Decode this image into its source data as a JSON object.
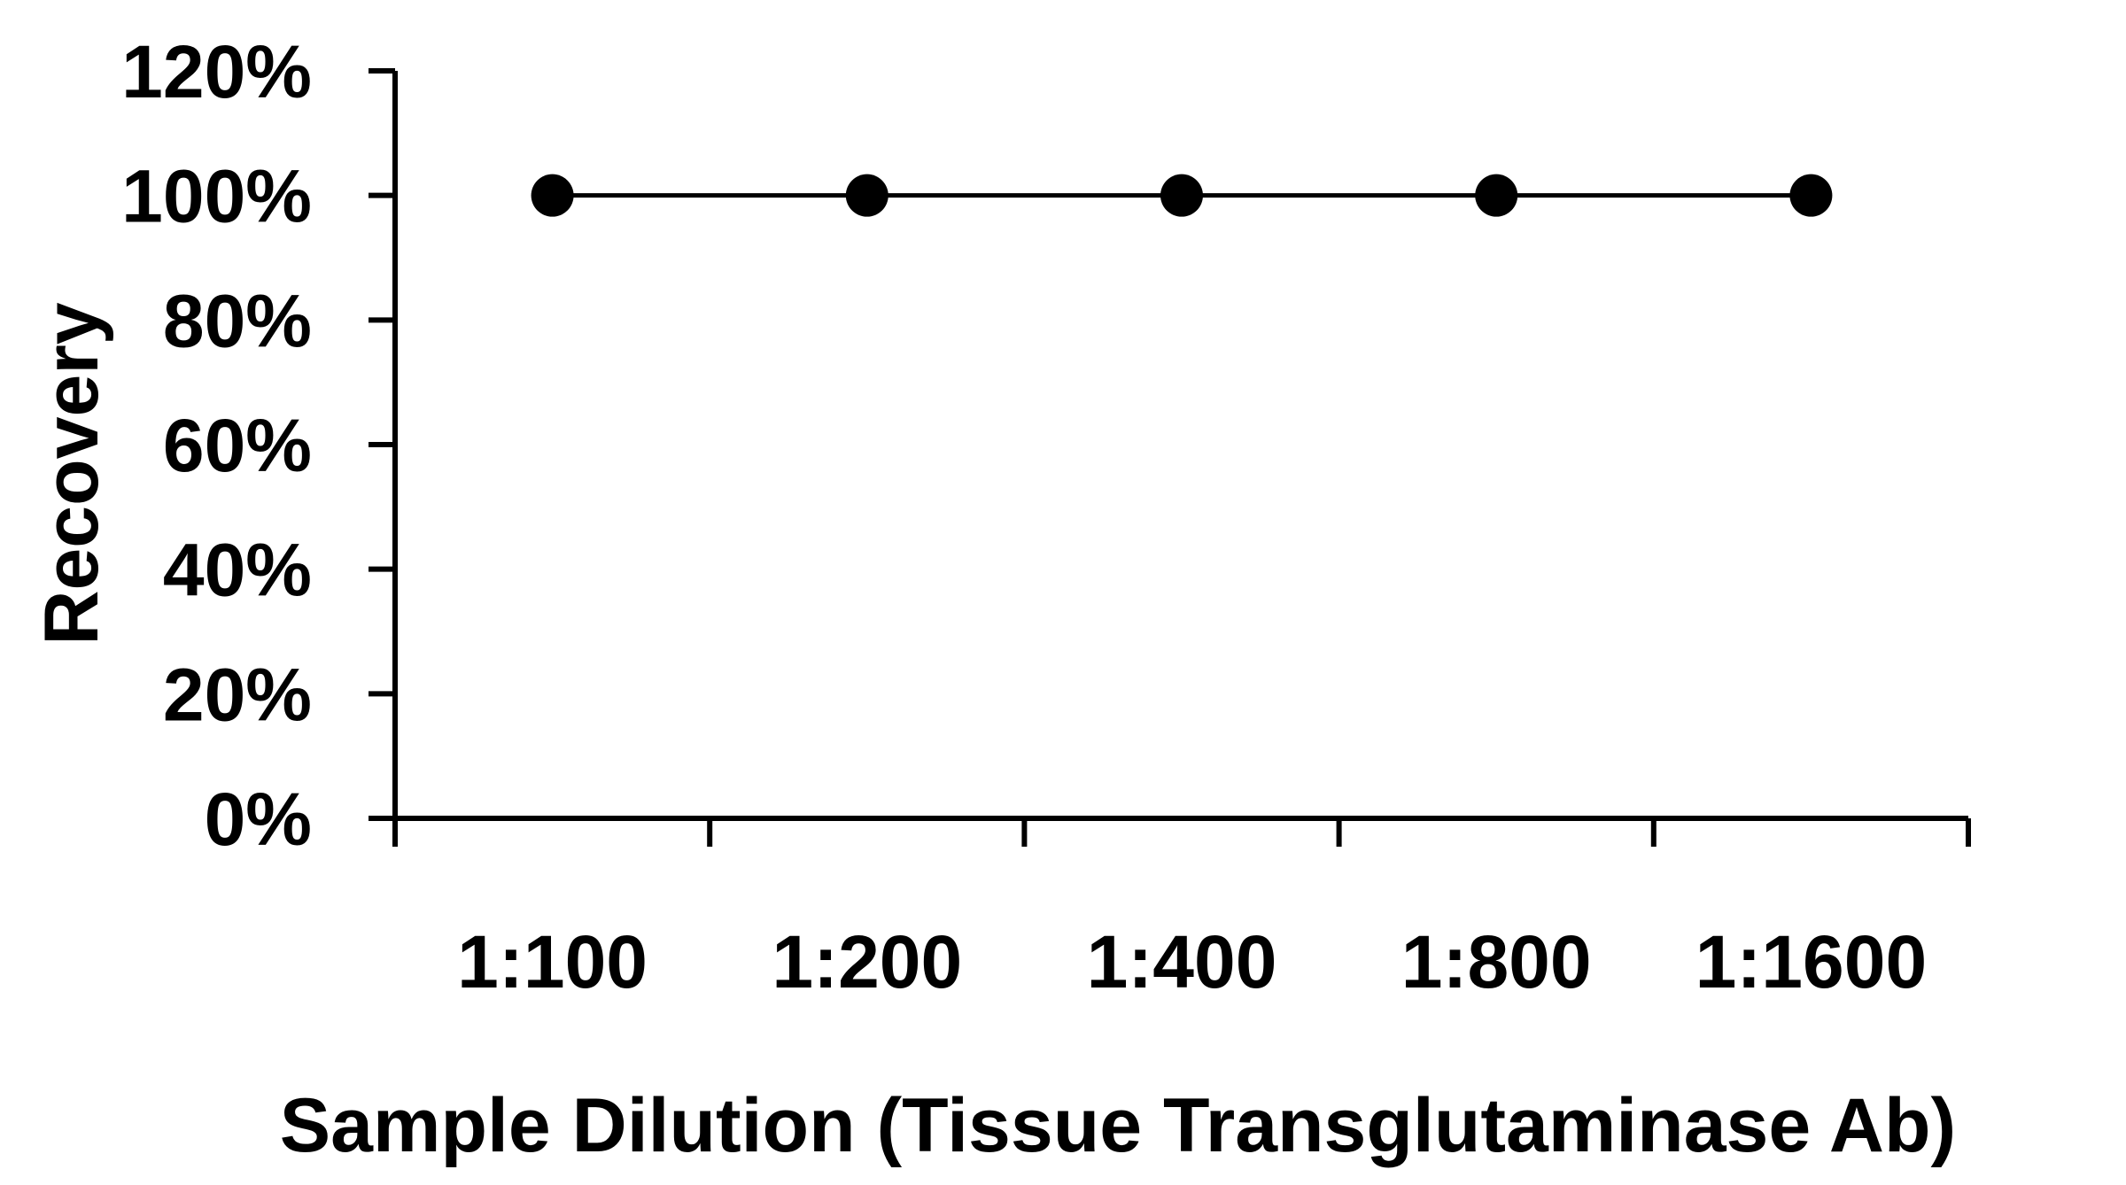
{
  "chart_data": {
    "type": "line",
    "categories": [
      "1:100",
      "1:200",
      "1:400",
      "1:800",
      "1:1600"
    ],
    "series": [
      {
        "values": [
          100,
          100,
          100,
          100,
          100
        ]
      }
    ],
    "y_tick_labels": [
      "0%",
      "20%",
      "40%",
      "60%",
      "80%",
      "100%",
      "120%"
    ],
    "y_ticks": [
      0,
      20,
      40,
      60,
      80,
      100,
      120
    ],
    "ylim": [
      0,
      120
    ],
    "ylabel": "Recovery",
    "xlabel": "Sample Dilution (Tissue Transglutaminase Ab)",
    "title": "",
    "grid": false,
    "legend": "none",
    "marker": "filled-circle",
    "colors": {
      "line": "#000000",
      "marker": "#000000",
      "axis": "#000000"
    }
  }
}
